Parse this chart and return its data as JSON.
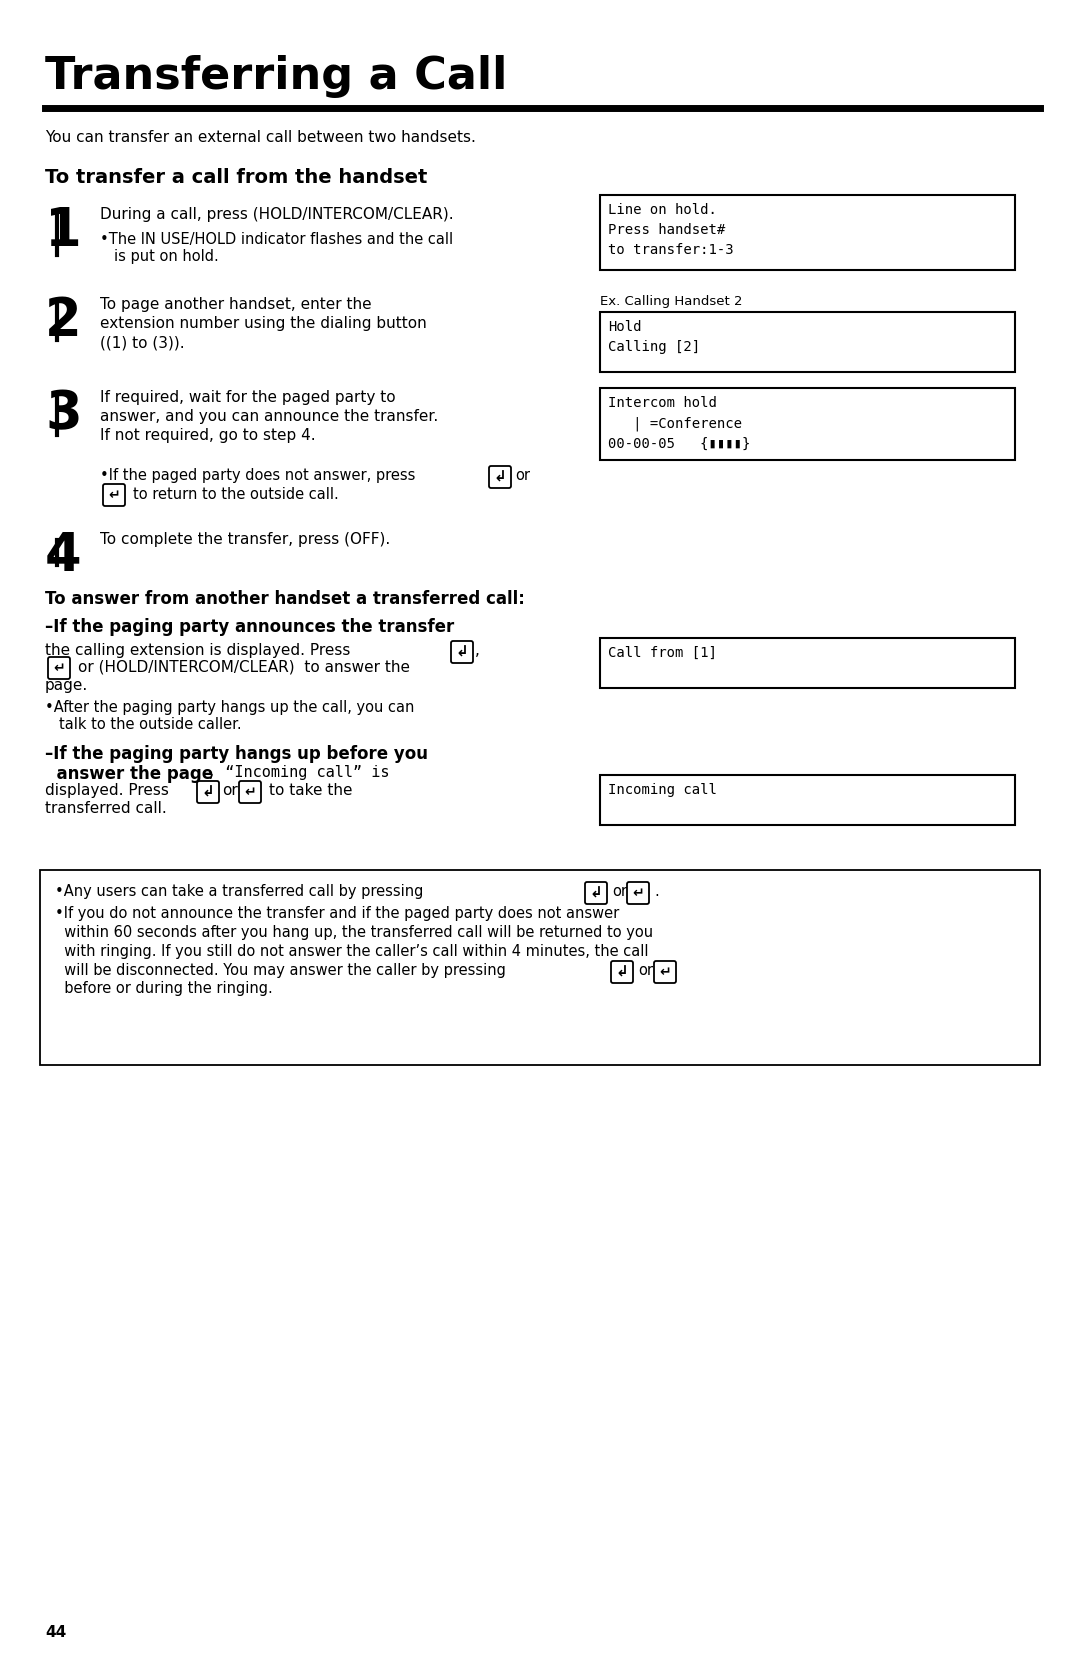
{
  "title": "Transferring a Call",
  "bg_color": "#ffffff",
  "page_number": "44",
  "intro_text": "You can transfer an external call between two handsets.",
  "section1_title": "To transfer a call from the handset",
  "display1": "Line on hold.\nPress handset#\nto transfer:1-3",
  "display2_label": "Ex. Calling Handset 2",
  "display2": "Hold\nCalling [2]",
  "display3": "Intercom hold\n   | =Conference\n00-00-05   {▮▮▮▮}",
  "section2_title": "To answer from another handset a transferred call:",
  "display4": "Call from [1]",
  "display5": "Incoming call",
  "note1a": "•Any users can take a transferred call by pressing",
  "note1b": "or",
  "note2": "•If you do not announce the transfer and if the paged party does not answer",
  "note3": "  within 60 seconds after you hang up, the transferred call will be returned to you",
  "note4": "  with ringing. If you still do not answer the caller’s call within 4 minutes, the call",
  "note5a": "  will be disconnected. You may answer the caller by pressing",
  "note5b": "or",
  "note6": "  before or during the ringing."
}
